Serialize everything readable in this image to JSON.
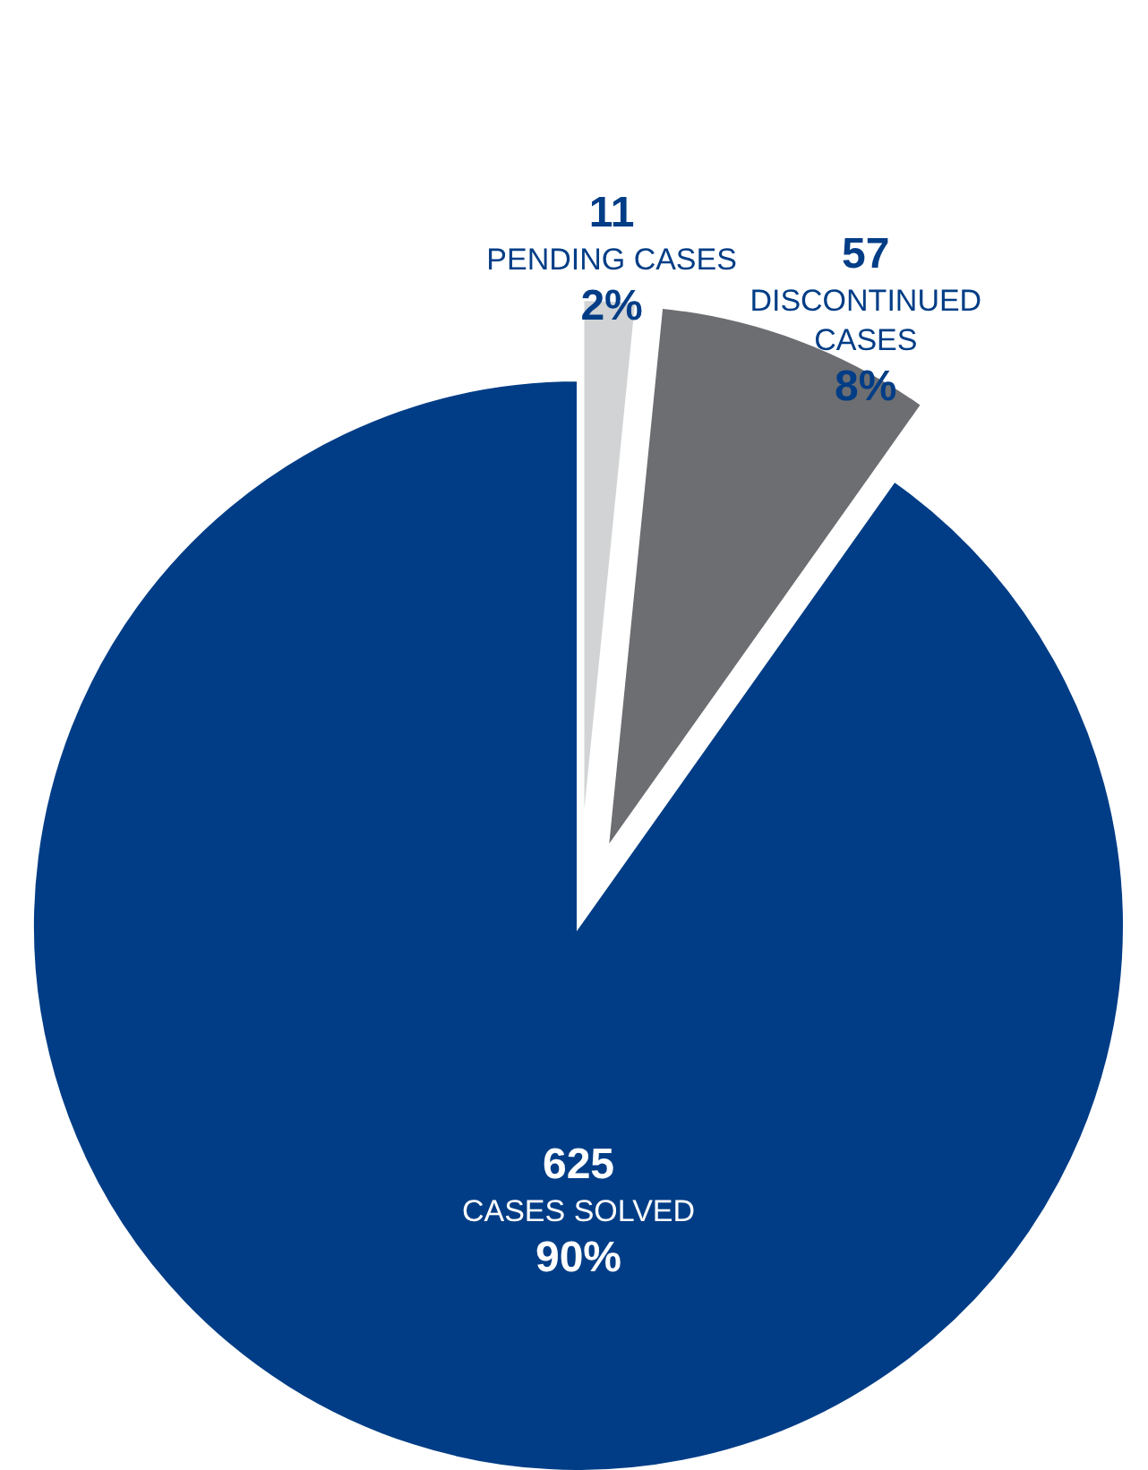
{
  "chart_data": {
    "type": "pie",
    "categories": [
      "PENDING CASES",
      "DISCONTINUED CASES",
      "CASES SOLVED"
    ],
    "values": [
      11,
      57,
      625
    ],
    "colors": [
      "#d1d3d4",
      "#6d6e71",
      "#003d86"
    ],
    "data_labels": true,
    "annotations": [
      {
        "text": "2%",
        "x": "PENDING CASES"
      },
      {
        "text": "8%",
        "x": "DISCONTINUED CASES"
      },
      {
        "text": "90%",
        "x": "CASES SOLVED"
      }
    ]
  }
}
